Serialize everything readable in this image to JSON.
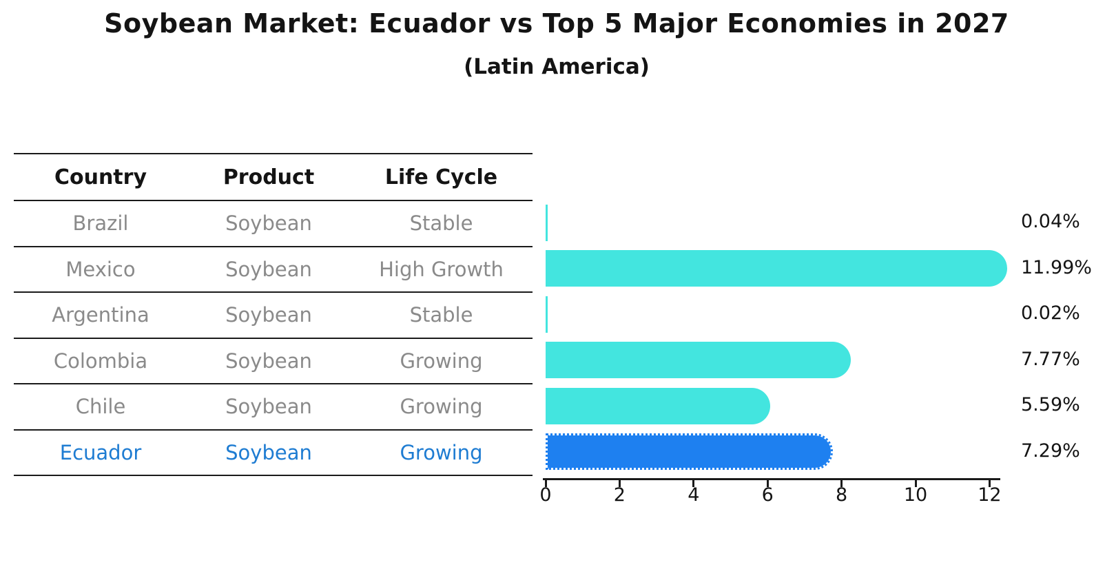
{
  "title": "Soybean Market: Ecuador vs Top 5 Major Economies in 2027",
  "subtitle": "(Latin America)",
  "table": {
    "headers": [
      "Country",
      "Product",
      "Life Cycle"
    ]
  },
  "chart_data": {
    "type": "bar",
    "orientation": "horizontal",
    "title": "Soybean Market: Ecuador vs Top 5 Major Economies in 2027",
    "subtitle": "(Latin America)",
    "categories": [
      "Brazil",
      "Mexico",
      "Argentina",
      "Colombia",
      "Chile",
      "Ecuador"
    ],
    "values": [
      0.04,
      11.99,
      0.02,
      7.77,
      5.59,
      7.29
    ],
    "value_labels": [
      "0.04%",
      "11.99%",
      "0.02%",
      "7.77%",
      "5.59%",
      "7.29%"
    ],
    "rows": [
      {
        "country": "Brazil",
        "product": "Soybean",
        "life_cycle": "Stable",
        "value": 0.04,
        "label": "0.04%",
        "highlight": false
      },
      {
        "country": "Mexico",
        "product": "Soybean",
        "life_cycle": "High Growth",
        "value": 11.99,
        "label": "11.99%",
        "highlight": false
      },
      {
        "country": "Argentina",
        "product": "Soybean",
        "life_cycle": "Stable",
        "value": 0.02,
        "label": "0.02%",
        "highlight": false
      },
      {
        "country": "Colombia",
        "product": "Soybean",
        "life_cycle": "Growing",
        "value": 7.77,
        "label": "7.77%",
        "highlight": false
      },
      {
        "country": "Chile",
        "product": "Soybean",
        "life_cycle": "Growing",
        "value": 5.59,
        "label": "5.59%",
        "highlight": false
      },
      {
        "country": "Ecuador",
        "product": "Soybean",
        "life_cycle": "Growing",
        "value": 7.29,
        "label": "7.29%",
        "highlight": true
      }
    ],
    "x_axis": {
      "ticks": [
        0,
        2,
        4,
        6,
        8,
        10,
        12
      ],
      "min": 0,
      "max": 12.3
    },
    "grid": false,
    "legend": "none",
    "colors": {
      "bar": "#43e5df",
      "highlight_bar": "#1e80f0",
      "highlight_text": "#1e7cd2",
      "row_text": "#8a8a8a",
      "heading_text": "#141414",
      "axis": "#1a1a1a"
    }
  }
}
